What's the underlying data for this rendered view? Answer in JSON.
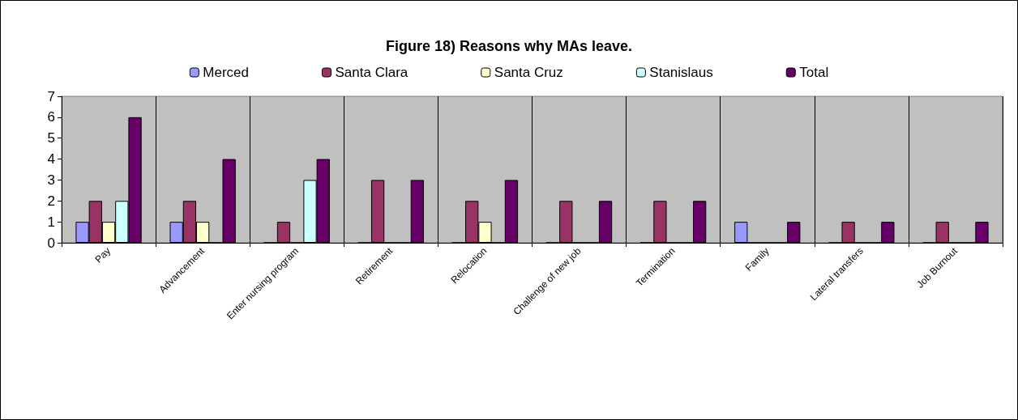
{
  "chart_data": {
    "type": "bar",
    "title": "Figure 18) Reasons why MAs leave.",
    "categories": [
      "Pay",
      "Advancement",
      "Enter nursing program",
      "Retirement",
      "Relocation",
      "Challenge of new job",
      "Termination",
      "Family",
      "Lateral transfers",
      "Job Burnout"
    ],
    "series": [
      {
        "name": "Merced",
        "color": "#9999ff",
        "values": [
          1,
          1,
          0,
          0,
          0,
          0,
          0,
          1,
          0,
          0
        ]
      },
      {
        "name": "Santa Clara",
        "color": "#993366",
        "values": [
          2,
          2,
          1,
          3,
          2,
          2,
          2,
          0,
          1,
          1
        ]
      },
      {
        "name": "Santa Cruz",
        "color": "#ffffcc",
        "values": [
          1,
          1,
          0,
          0,
          1,
          0,
          0,
          0,
          0,
          0
        ]
      },
      {
        "name": "Stanislaus",
        "color": "#ccffff",
        "values": [
          2,
          0,
          3,
          0,
          0,
          0,
          0,
          0,
          0,
          0
        ]
      },
      {
        "name": "Total",
        "color": "#660066",
        "values": [
          6,
          4,
          4,
          3,
          3,
          2,
          2,
          1,
          1,
          1
        ]
      }
    ],
    "ylim": [
      0,
      7
    ],
    "yticks": [
      0,
      1,
      2,
      3,
      4,
      5,
      6,
      7
    ],
    "grid": "x",
    "legend": "top"
  }
}
